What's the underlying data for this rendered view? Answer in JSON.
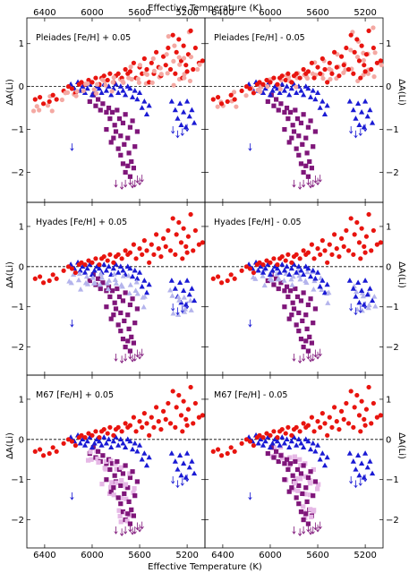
{
  "chart_data": {
    "type": "scatter",
    "x_axis_title": "Effective Temperature (K)",
    "y_axis_title": "ΔA(Li)",
    "xlim": [
      6550,
      5050
    ],
    "ylim": [
      -2.7,
      1.6
    ],
    "x_ticks": [
      6400,
      6000,
      5600,
      5200
    ],
    "y_ticks": [
      1,
      0,
      -1,
      -2
    ],
    "y_tick_labels": [
      "1",
      "0",
      "−1",
      "−2"
    ],
    "zero_line": true,
    "colors": {
      "red": "#e8140f",
      "pink": "#f4a9a3",
      "blue": "#1a1ad4",
      "lightblue": "#b4b4ec",
      "purple": "#7f167a",
      "lightpurple": "#e6b8e6"
    },
    "panels": [
      {
        "label": "Pleiades [Fe/H] + 0.05",
        "shift": "red"
      },
      {
        "label": "Pleiades [Fe/H] - 0.05",
        "shift": "red"
      },
      {
        "label": "Hyades [Fe/H] + 0.05",
        "shift": "blue"
      },
      {
        "label": "Hyades [Fe/H] - 0.05",
        "shift": "blue"
      },
      {
        "label": "M67 [Fe/H] + 0.05",
        "shift": "purple"
      },
      {
        "label": "M67 [Fe/H] - 0.05",
        "shift": "purple"
      }
    ],
    "series": {
      "red_circles": [
        [
          6480,
          -0.3
        ],
        [
          6440,
          -0.25
        ],
        [
          6410,
          -0.4
        ],
        [
          6360,
          -0.35
        ],
        [
          6330,
          -0.2
        ],
        [
          6300,
          -0.3
        ],
        [
          6240,
          -0.1
        ],
        [
          6200,
          0.0
        ],
        [
          6170,
          -0.05
        ],
        [
          6140,
          -0.15
        ],
        [
          6110,
          0.05
        ],
        [
          6090,
          0.1
        ],
        [
          6060,
          0.05
        ],
        [
          6030,
          0.15
        ],
        [
          6000,
          0.1
        ],
        [
          5970,
          0.2
        ],
        [
          5940,
          0.05
        ],
        [
          5920,
          0.2
        ],
        [
          5900,
          0.25
        ],
        [
          5870,
          0.15
        ],
        [
          5850,
          0.3
        ],
        [
          5820,
          0.1
        ],
        [
          5800,
          0.25
        ],
        [
          5780,
          0.3
        ],
        [
          5750,
          0.2
        ],
        [
          5720,
          0.4
        ],
        [
          5700,
          0.3
        ],
        [
          5680,
          0.35
        ],
        [
          5650,
          0.55
        ],
        [
          5630,
          0.2
        ],
        [
          5600,
          0.45
        ],
        [
          5580,
          0.3
        ],
        [
          5560,
          0.65
        ],
        [
          5540,
          0.4
        ],
        [
          5520,
          0.1
        ],
        [
          5500,
          0.55
        ],
        [
          5480,
          0.3
        ],
        [
          5460,
          0.8
        ],
        [
          5440,
          0.45
        ],
        [
          5420,
          0.25
        ],
        [
          5400,
          0.7
        ],
        [
          5380,
          0.5
        ],
        [
          5360,
          0.9
        ],
        [
          5340,
          0.4
        ],
        [
          5320,
          1.2
        ],
        [
          5300,
          0.3
        ],
        [
          5290,
          0.8
        ],
        [
          5270,
          1.1
        ],
        [
          5250,
          0.6
        ],
        [
          5240,
          0.2
        ],
        [
          5230,
          0.95
        ],
        [
          5210,
          0.5
        ],
        [
          5200,
          0.35
        ],
        [
          5190,
          0.75
        ],
        [
          5170,
          1.3
        ],
        [
          5150,
          0.4
        ],
        [
          5130,
          0.9
        ],
        [
          5100,
          0.55
        ],
        [
          5070,
          0.6
        ]
      ],
      "blue_triangles": [
        [
          6180,
          0.05
        ],
        [
          6150,
          -0.05
        ],
        [
          6120,
          0.1
        ],
        [
          6100,
          -0.1
        ],
        [
          6080,
          0.0
        ],
        [
          6060,
          -0.15
        ],
        [
          6040,
          -0.05
        ],
        [
          6020,
          0.05
        ],
        [
          6000,
          -0.2
        ],
        [
          5980,
          -0.1
        ],
        [
          5960,
          0.0
        ],
        [
          5940,
          -0.05
        ],
        [
          5920,
          -0.15
        ],
        [
          5900,
          0.05
        ],
        [
          5880,
          -0.1
        ],
        [
          5860,
          0.0
        ],
        [
          5840,
          -0.2
        ],
        [
          5820,
          -0.05
        ],
        [
          5800,
          0.05
        ],
        [
          5780,
          -0.15
        ],
        [
          5760,
          0.0
        ],
        [
          5740,
          -0.1
        ],
        [
          5720,
          -0.2
        ],
        [
          5700,
          0.0
        ],
        [
          5680,
          -0.05
        ],
        [
          5660,
          -0.25
        ],
        [
          5640,
          -0.1
        ],
        [
          5620,
          -0.3
        ],
        [
          5600,
          -0.15
        ],
        [
          5580,
          -0.5
        ],
        [
          5560,
          -0.35
        ],
        [
          5540,
          -0.65
        ],
        [
          5520,
          -0.45
        ],
        [
          5330,
          -0.35
        ],
        [
          5300,
          -0.55
        ],
        [
          5280,
          -0.75
        ],
        [
          5260,
          -0.4
        ],
        [
          5250,
          -0.9
        ],
        [
          5230,
          -0.6
        ],
        [
          5210,
          -0.95
        ],
        [
          5200,
          -0.35
        ],
        [
          5180,
          -0.7
        ],
        [
          5160,
          -0.55
        ],
        [
          5140,
          -0.85
        ]
      ],
      "blue_arrows": [
        [
          5320,
          -1.05
        ],
        [
          5280,
          -1.15
        ],
        [
          5240,
          -1.1
        ],
        [
          5200,
          -1.0
        ]
      ],
      "purple_squares": [
        [
          6020,
          -0.35
        ],
        [
          5990,
          -0.2
        ],
        [
          5970,
          -0.45
        ],
        [
          5950,
          -0.3
        ],
        [
          5930,
          -0.55
        ],
        [
          5910,
          -0.4
        ],
        [
          5880,
          -0.6
        ],
        [
          5860,
          -0.5
        ],
        [
          5850,
          -0.75
        ],
        [
          5830,
          -0.6
        ],
        [
          5810,
          -0.9
        ],
        [
          5800,
          -1.05
        ],
        [
          5790,
          -0.55
        ],
        [
          5770,
          -0.75
        ],
        [
          5760,
          -1.15
        ],
        [
          5740,
          -0.85
        ],
        [
          5730,
          -1.35
        ],
        [
          5720,
          -0.65
        ],
        [
          5700,
          -1.2
        ],
        [
          5690,
          -1.55
        ],
        [
          5680,
          -0.95
        ],
        [
          5670,
          -1.75
        ],
        [
          5660,
          -0.8
        ],
        [
          5650,
          -1.9
        ],
        [
          5640,
          -1.4
        ],
        [
          5620,
          -1.05
        ],
        [
          5880,
          -1.0
        ],
        [
          5840,
          -1.3
        ],
        [
          5820,
          -1.2
        ],
        [
          5780,
          -1.45
        ],
        [
          5760,
          -1.6
        ],
        [
          5740,
          -1.8
        ],
        [
          5720,
          -2.0
        ],
        [
          5700,
          -1.85
        ],
        [
          5680,
          -2.1
        ]
      ],
      "purple_arrows": [
        [
          5800,
          -2.3
        ],
        [
          5750,
          -2.35
        ],
        [
          5720,
          -2.3
        ],
        [
          5680,
          -2.25
        ],
        [
          5660,
          -2.32
        ],
        [
          5640,
          -2.3
        ],
        [
          5620,
          -2.2
        ],
        [
          5600,
          -2.25
        ],
        [
          5580,
          -2.18
        ]
      ],
      "lone_arrow": [
        [
          6170,
          -1.45
        ]
      ]
    }
  }
}
